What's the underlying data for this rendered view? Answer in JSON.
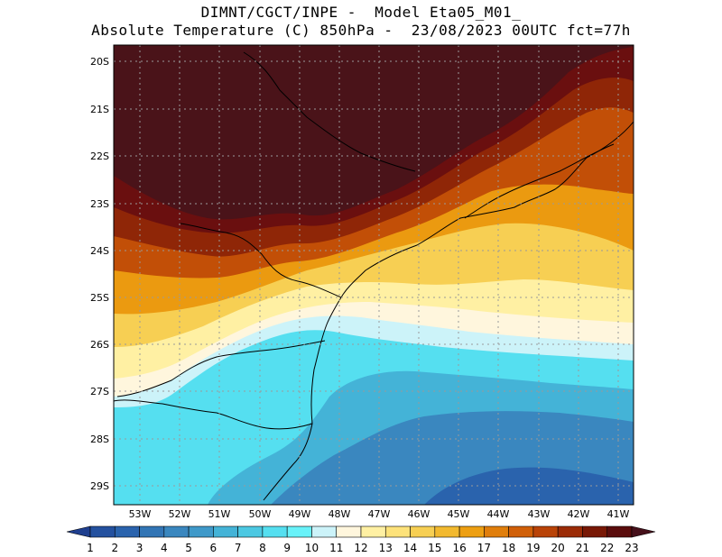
{
  "header": {
    "line1": "DIMNT/CGCT/INPE -  Model Eta05_M01_",
    "line2": "Absolute Temperature (C) 850hPa -  23/08/2023 00UTC fct=77h"
  },
  "map": {
    "lat_labels": [
      "20S",
      "21S",
      "22S",
      "23S",
      "24S",
      "25S",
      "26S",
      "27S",
      "28S",
      "29S"
    ],
    "lon_labels": [
      "53W",
      "52W",
      "51W",
      "50W",
      "49W",
      "48W",
      "47W",
      "46W",
      "45W",
      "44W",
      "43W",
      "42W",
      "41W"
    ]
  },
  "colorbar": {
    "labels": [
      "1",
      "2",
      "3",
      "4",
      "5",
      "6",
      "7",
      "8",
      "9",
      "10",
      "11",
      "12",
      "13",
      "14",
      "15",
      "16",
      "17",
      "18",
      "19",
      "20",
      "21",
      "22",
      "23"
    ],
    "colors": [
      "#1f3f8f",
      "#24519f",
      "#2a63ad",
      "#3275b5",
      "#3a87bf",
      "#3f99c9",
      "#44b3d7",
      "#4cc8e2",
      "#55dff0",
      "#68f2f9",
      "#ccf3f9",
      "#fff6dd",
      "#fff0a3",
      "#fde27a",
      "#f7cf53",
      "#f2b92f",
      "#ed9f12",
      "#e07e0b",
      "#d05f08",
      "#b94307",
      "#9b2b06",
      "#781805",
      "#5a0c0c",
      "#46101a"
    ]
  }
}
